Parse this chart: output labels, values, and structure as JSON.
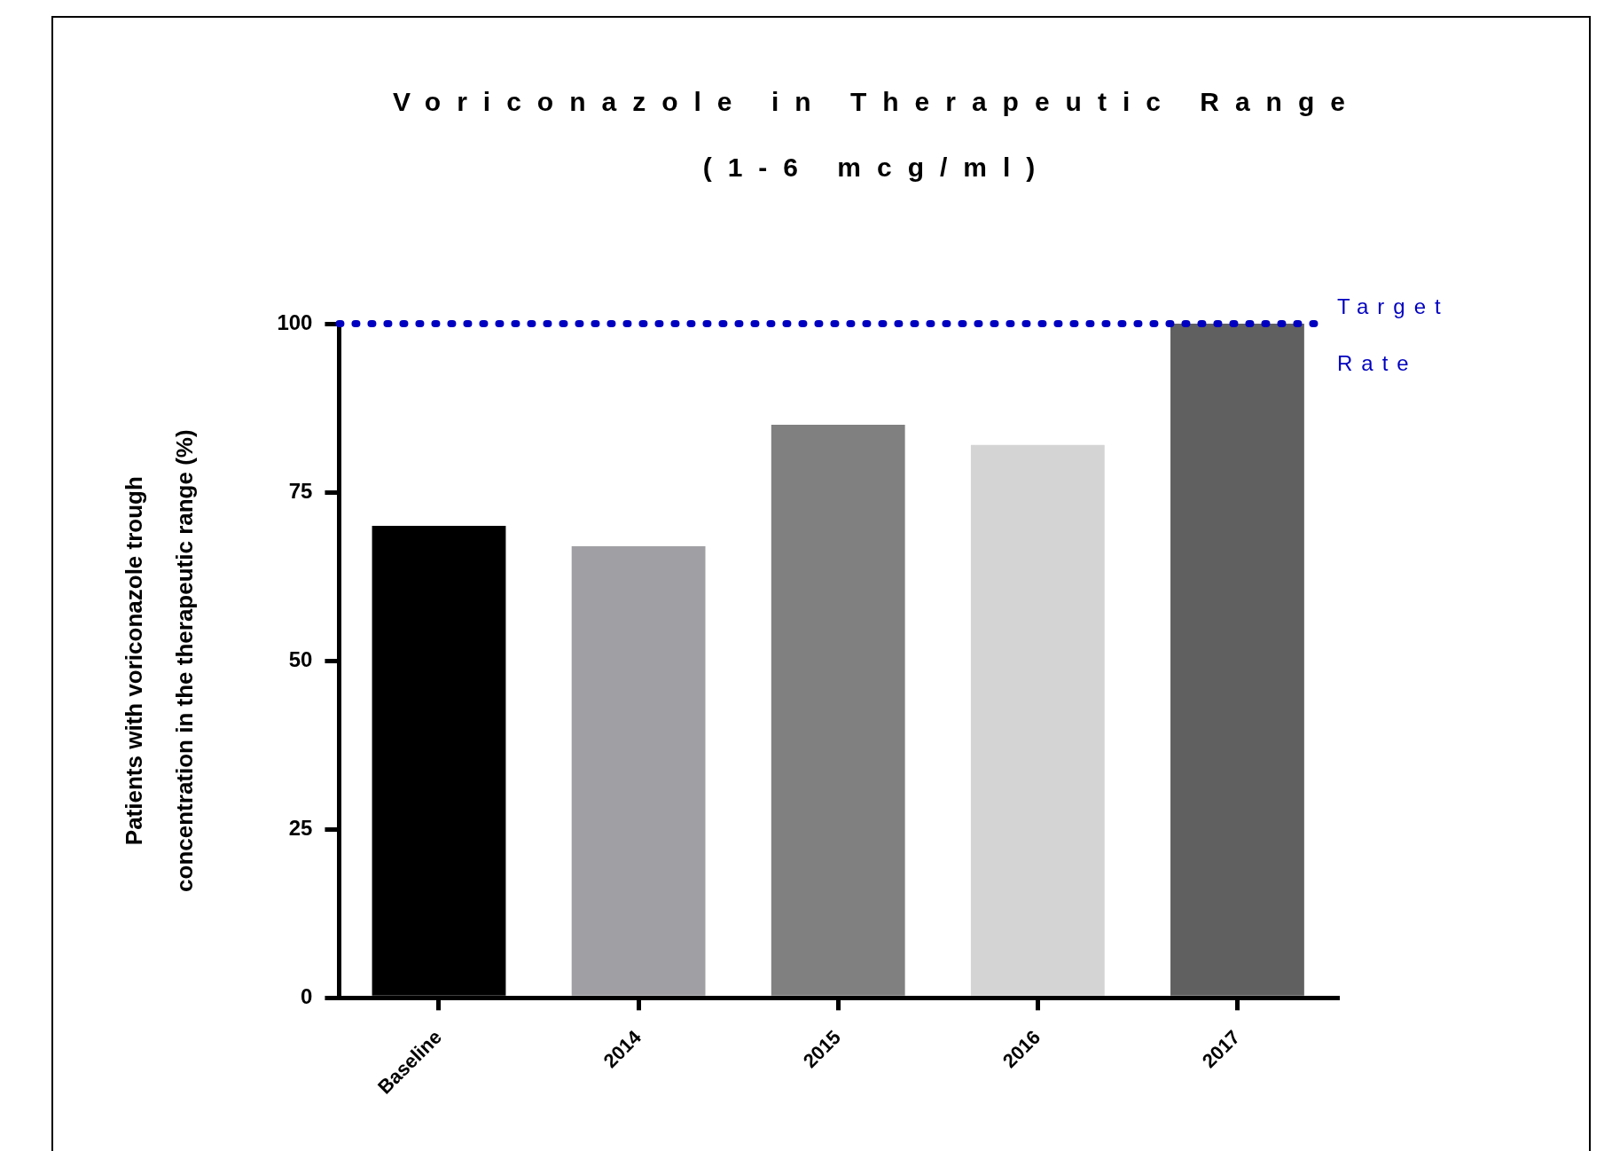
{
  "chart_data": {
    "type": "bar",
    "title": "Voriconazole in Therapeutic Range",
    "subtitle": "(1-6 mcg/ml)",
    "ylabel": "Patients with voriconazole trough\nconcentration in the therapeutic range (%)",
    "categories": [
      "Baseline",
      "2014",
      "2015",
      "2016",
      "2017"
    ],
    "values": [
      70,
      67,
      85,
      82,
      100
    ],
    "colors": [
      "#000000",
      "#a0a0a4",
      "#808080",
      "#d4d4d4",
      "#606060"
    ],
    "ylim": [
      0,
      100
    ],
    "yticks": [
      0,
      25,
      50,
      75,
      100
    ],
    "grid": false,
    "legend": false,
    "ref_lines": [
      {
        "axis": "y",
        "value": 100,
        "label": "Target\nRate",
        "color": "#0000c0",
        "line_style": "dotted"
      }
    ]
  }
}
